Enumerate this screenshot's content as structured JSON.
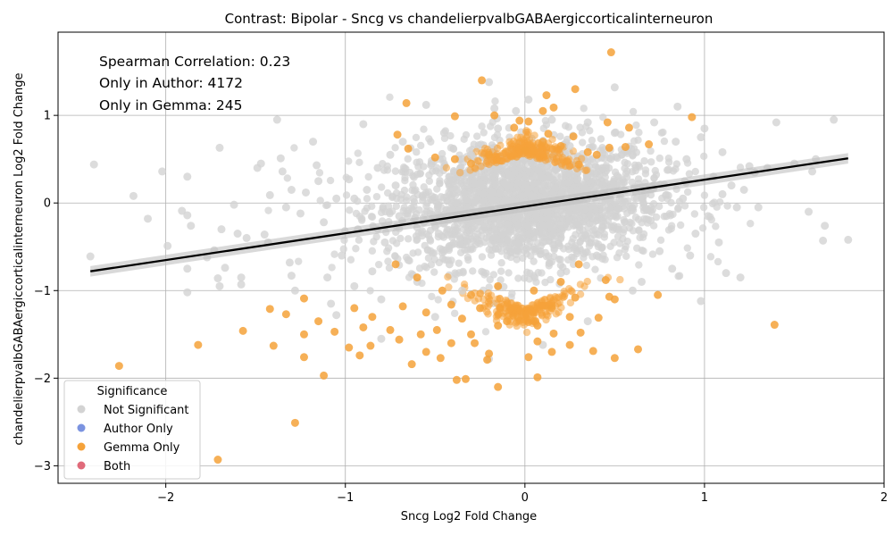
{
  "chart_data": {
    "type": "scatter",
    "title": "Contrast: Bipolar - Sncg vs chandelierpvalbGABAergiccorticalinterneuron",
    "xlabel": "Sncg Log2 Fold Change",
    "ylabel": "chandelierpvalbGABAergiccorticalinterneuron Log2 Fold Change",
    "xlim": [
      -2.6,
      2.0
    ],
    "ylim": [
      -3.2,
      1.95
    ],
    "x_ticks": [
      -2,
      -1,
      0,
      1,
      2
    ],
    "x_tick_labels": [
      "−2",
      "−1",
      "0",
      "1",
      "2"
    ],
    "y_ticks": [
      -3,
      -2,
      -1,
      0,
      1
    ],
    "y_tick_labels": [
      "−3",
      "−2",
      "−1",
      "0",
      "1"
    ],
    "grid": true,
    "annotations": [
      "Spearman Correlation: 0.23",
      "Only in Author: 4172",
      "Only in Gemma: 245"
    ],
    "legend": {
      "title": "Significance",
      "placement": "lower-left",
      "entries": [
        {
          "label": "Not Significant",
          "color": "#d3d3d3"
        },
        {
          "label": "Author Only",
          "color": "#7b93e0"
        },
        {
          "label": "Gemma Only",
          "color": "#f5a23a"
        },
        {
          "label": "Both",
          "color": "#e06a7a"
        }
      ]
    },
    "regression_line": {
      "x": [
        -2.42,
        1.8
      ],
      "y": [
        -0.78,
        0.51
      ],
      "color": "#000000"
    },
    "series": [
      {
        "name": "Not Significant",
        "color": "#d3d3d3",
        "points": [
          [
            -2.4,
            0.44
          ],
          [
            -2.42,
            -0.61
          ],
          [
            -2.18,
            0.08
          ],
          [
            -2.1,
            -0.18
          ],
          [
            -2.02,
            0.36
          ],
          [
            -1.99,
            -0.49
          ],
          [
            -1.91,
            -0.09
          ],
          [
            -1.88,
            -0.14
          ],
          [
            -1.88,
            0.3
          ],
          [
            -1.88,
            -0.75
          ],
          [
            -1.86,
            -0.26
          ],
          [
            -1.88,
            -1.02
          ],
          [
            -1.77,
            -0.62
          ],
          [
            -1.73,
            -0.54
          ],
          [
            -1.7,
            0.63
          ],
          [
            -1.69,
            -0.3
          ],
          [
            -1.67,
            -0.74
          ],
          [
            -1.71,
            -0.86
          ],
          [
            -1.7,
            -0.95
          ],
          [
            -1.62,
            -0.02
          ],
          [
            -1.58,
            -0.85
          ],
          [
            -1.58,
            -0.93
          ],
          [
            -1.55,
            -0.4
          ],
          [
            -1.49,
            0.4
          ],
          [
            -1.47,
            0.45
          ],
          [
            -1.45,
            -0.36
          ],
          [
            -1.43,
            -0.45
          ],
          [
            -1.42,
            0.09
          ],
          [
            -1.38,
            0.95
          ],
          [
            -1.36,
            0.51
          ],
          [
            -1.35,
            0.36
          ],
          [
            -1.33,
            -0.05
          ],
          [
            -1.31,
            -0.68
          ],
          [
            -1.3,
            -0.83
          ],
          [
            -1.28,
            -1.0
          ],
          [
            -1.25,
            -0.12
          ],
          [
            -1.22,
            0.12
          ],
          [
            -1.18,
            0.7
          ],
          [
            -1.16,
            0.43
          ],
          [
            -1.15,
            0.25
          ],
          [
            -1.12,
            -0.22
          ],
          [
            -1.1,
            -0.85
          ],
          [
            -1.08,
            -1.15
          ],
          [
            -1.05,
            0.05
          ],
          [
            -1.02,
            -0.6
          ],
          [
            -0.98,
            0.27
          ],
          [
            -0.95,
            -0.95
          ],
          [
            -0.93,
            -0.3
          ],
          [
            -0.9,
            0.9
          ],
          [
            -0.88,
            0.15
          ],
          [
            -0.85,
            -0.78
          ],
          [
            -0.82,
            0.4
          ],
          [
            -0.8,
            -1.1
          ],
          [
            -0.78,
            -0.45
          ],
          [
            -0.75,
            0.55
          ],
          [
            -0.72,
            0.2
          ],
          [
            -0.7,
            -0.15
          ],
          [
            -0.68,
            0.7
          ],
          [
            -0.65,
            -0.65
          ],
          [
            -0.62,
            0.05
          ],
          [
            -0.6,
            -0.9
          ],
          [
            -0.55,
            1.12
          ],
          [
            -0.52,
            0.45
          ],
          [
            -0.48,
            -0.35
          ],
          [
            -0.45,
            0.8
          ],
          [
            -0.42,
            -0.7
          ],
          [
            -0.38,
            0.15
          ],
          [
            -0.35,
            -1.0
          ],
          [
            -0.3,
            0.55
          ],
          [
            -0.25,
            -0.2
          ],
          [
            -0.2,
            1.38
          ],
          [
            -0.17,
            1.08
          ],
          [
            -0.15,
            0.85
          ],
          [
            -0.1,
            -0.5
          ],
          [
            -0.05,
            1.05
          ],
          [
            0.02,
            1.18
          ],
          [
            0.05,
            0.3
          ],
          [
            0.1,
            -0.45
          ],
          [
            0.15,
            0.95
          ],
          [
            0.2,
            -0.8
          ],
          [
            0.25,
            0.65
          ],
          [
            0.3,
            -0.1
          ],
          [
            0.35,
            0.92
          ],
          [
            0.4,
            -0.6
          ],
          [
            0.45,
            0.4
          ],
          [
            0.5,
            0.8
          ],
          [
            0.5,
            1.32
          ],
          [
            0.55,
            -0.3
          ],
          [
            0.6,
            0.55
          ],
          [
            0.65,
            -0.9
          ],
          [
            0.7,
            0.15
          ],
          [
            0.72,
            0.92
          ],
          [
            0.75,
            -0.55
          ],
          [
            0.8,
            0.38
          ],
          [
            0.82,
            -0.75
          ],
          [
            0.84,
            0.7
          ],
          [
            0.85,
            1.1
          ],
          [
            0.88,
            0.05
          ],
          [
            0.9,
            0.5
          ],
          [
            0.92,
            -0.6
          ],
          [
            0.95,
            -0.35
          ],
          [
            0.98,
            0.75
          ],
          [
            1.0,
            0.85
          ],
          [
            1.02,
            -0.15
          ],
          [
            1.05,
            0.3
          ],
          [
            1.08,
            -0.45
          ],
          [
            1.1,
            0.58
          ],
          [
            1.12,
            -0.8
          ],
          [
            1.15,
            0.2
          ],
          [
            1.18,
            -0.05
          ],
          [
            1.2,
            -0.85
          ],
          [
            1.22,
            0.15
          ],
          [
            1.25,
            0.42
          ],
          [
            1.28,
            0.35
          ],
          [
            1.3,
            -0.05
          ],
          [
            1.35,
            0.4
          ],
          [
            1.4,
            0.92
          ],
          [
            1.5,
            0.45
          ],
          [
            1.58,
            -0.1
          ],
          [
            1.6,
            0.36
          ],
          [
            1.62,
            0.5
          ],
          [
            1.66,
            -0.43
          ],
          [
            1.67,
            -0.26
          ],
          [
            1.72,
            0.95
          ],
          [
            1.8,
            -0.42
          ],
          [
            -0.5,
            -1.3
          ],
          [
            -0.2,
            -1.78
          ],
          [
            0.1,
            -1.62
          ],
          [
            0.35,
            -1.35
          ],
          [
            -0.8,
            -1.55
          ],
          [
            -1.05,
            -1.28
          ],
          [
            0.6,
            -1.0
          ],
          [
            0.98,
            -1.12
          ],
          [
            -1.6,
            -0.35
          ],
          [
            -1.3,
            0.15
          ],
          [
            -0.95,
            0.05
          ],
          [
            -0.4,
            0.25
          ],
          [
            0.2,
            -0.25
          ],
          [
            0.7,
            -0.2
          ],
          [
            1.1,
            0.1
          ]
        ]
      },
      {
        "name": "Gemma Only",
        "color": "#f5a23a",
        "points": [
          [
            0.48,
            1.72
          ],
          [
            -0.24,
            1.4
          ],
          [
            0.28,
            1.3
          ],
          [
            0.12,
            1.23
          ],
          [
            -0.66,
            1.14
          ],
          [
            0.16,
            1.09
          ],
          [
            0.1,
            1.05
          ],
          [
            -0.39,
            0.99
          ],
          [
            -0.17,
            1.0
          ],
          [
            0.93,
            0.98
          ],
          [
            0.46,
            0.92
          ],
          [
            -0.03,
            0.94
          ],
          [
            0.02,
            0.93
          ],
          [
            -0.06,
            0.86
          ],
          [
            0.58,
            0.86
          ],
          [
            0.13,
            0.79
          ],
          [
            -0.71,
            0.78
          ],
          [
            0.27,
            0.76
          ],
          [
            0.69,
            0.67
          ],
          [
            0.56,
            0.64
          ],
          [
            -0.65,
            0.62
          ],
          [
            0.47,
            0.63
          ],
          [
            0.35,
            0.58
          ],
          [
            0.4,
            0.55
          ],
          [
            -0.39,
            0.5
          ],
          [
            0.3,
            0.44
          ],
          [
            -0.5,
            0.52
          ],
          [
            -0.2,
            0.55
          ],
          [
            0.0,
            0.6
          ],
          [
            0.2,
            0.65
          ],
          [
            -0.3,
            0.45
          ],
          [
            0.1,
            0.7
          ],
          [
            -0.72,
            -0.7
          ],
          [
            -0.6,
            -0.85
          ],
          [
            -0.46,
            -1.0
          ],
          [
            -0.3,
            -1.05
          ],
          [
            -0.15,
            -0.95
          ],
          [
            0.05,
            -1.0
          ],
          [
            0.2,
            -0.9
          ],
          [
            0.3,
            -0.7
          ],
          [
            0.45,
            -0.88
          ],
          [
            0.74,
            -1.05
          ],
          [
            0.47,
            -1.07
          ],
          [
            0.28,
            -1.08
          ],
          [
            -1.23,
            -1.09
          ],
          [
            -0.68,
            -1.18
          ],
          [
            -0.41,
            -1.16
          ],
          [
            -1.42,
            -1.21
          ],
          [
            -1.33,
            -1.27
          ],
          [
            -1.15,
            -1.35
          ],
          [
            -0.95,
            -1.2
          ],
          [
            -0.85,
            -1.3
          ],
          [
            -0.55,
            -1.25
          ],
          [
            -0.35,
            -1.32
          ],
          [
            -0.25,
            -1.2
          ],
          [
            -0.1,
            -1.35
          ],
          [
            0.05,
            -1.35
          ],
          [
            0.15,
            -1.2
          ],
          [
            0.25,
            -1.3
          ],
          [
            0.41,
            -1.31
          ],
          [
            -1.06,
            -1.47
          ],
          [
            -1.23,
            -1.5
          ],
          [
            -1.57,
            -1.46
          ],
          [
            -0.75,
            -1.45
          ],
          [
            -0.58,
            -1.5
          ],
          [
            -0.49,
            -1.45
          ],
          [
            -0.3,
            -1.5
          ],
          [
            -0.15,
            -1.4
          ],
          [
            0.07,
            -1.4
          ],
          [
            0.16,
            -1.49
          ],
          [
            0.31,
            -1.48
          ],
          [
            -1.4,
            -1.63
          ],
          [
            -1.82,
            -1.62
          ],
          [
            -0.98,
            -1.65
          ],
          [
            -0.86,
            -1.63
          ],
          [
            -0.55,
            -1.7
          ],
          [
            -0.41,
            -1.6
          ],
          [
            -0.28,
            -1.6
          ],
          [
            -0.2,
            -1.72
          ],
          [
            0.07,
            -1.58
          ],
          [
            0.25,
            -1.62
          ],
          [
            0.38,
            -1.69
          ],
          [
            0.63,
            -1.67
          ],
          [
            -1.23,
            -1.76
          ],
          [
            -0.92,
            -1.74
          ],
          [
            -0.63,
            -1.84
          ],
          [
            -0.47,
            -1.77
          ],
          [
            -0.21,
            -1.79
          ],
          [
            0.02,
            -1.76
          ],
          [
            0.15,
            -1.7
          ],
          [
            0.5,
            -1.77
          ],
          [
            -2.26,
            -1.86
          ],
          [
            -1.12,
            -1.97
          ],
          [
            -0.38,
            -2.02
          ],
          [
            -0.33,
            -2.01
          ],
          [
            0.07,
            -1.99
          ],
          [
            -0.15,
            -2.1
          ],
          [
            1.39,
            -1.39
          ],
          [
            -1.28,
            -2.51
          ],
          [
            -1.71,
            -2.93
          ],
          [
            0.5,
            -1.1
          ],
          [
            -0.9,
            -1.42
          ],
          [
            -0.7,
            -1.56
          ]
        ]
      }
    ]
  }
}
